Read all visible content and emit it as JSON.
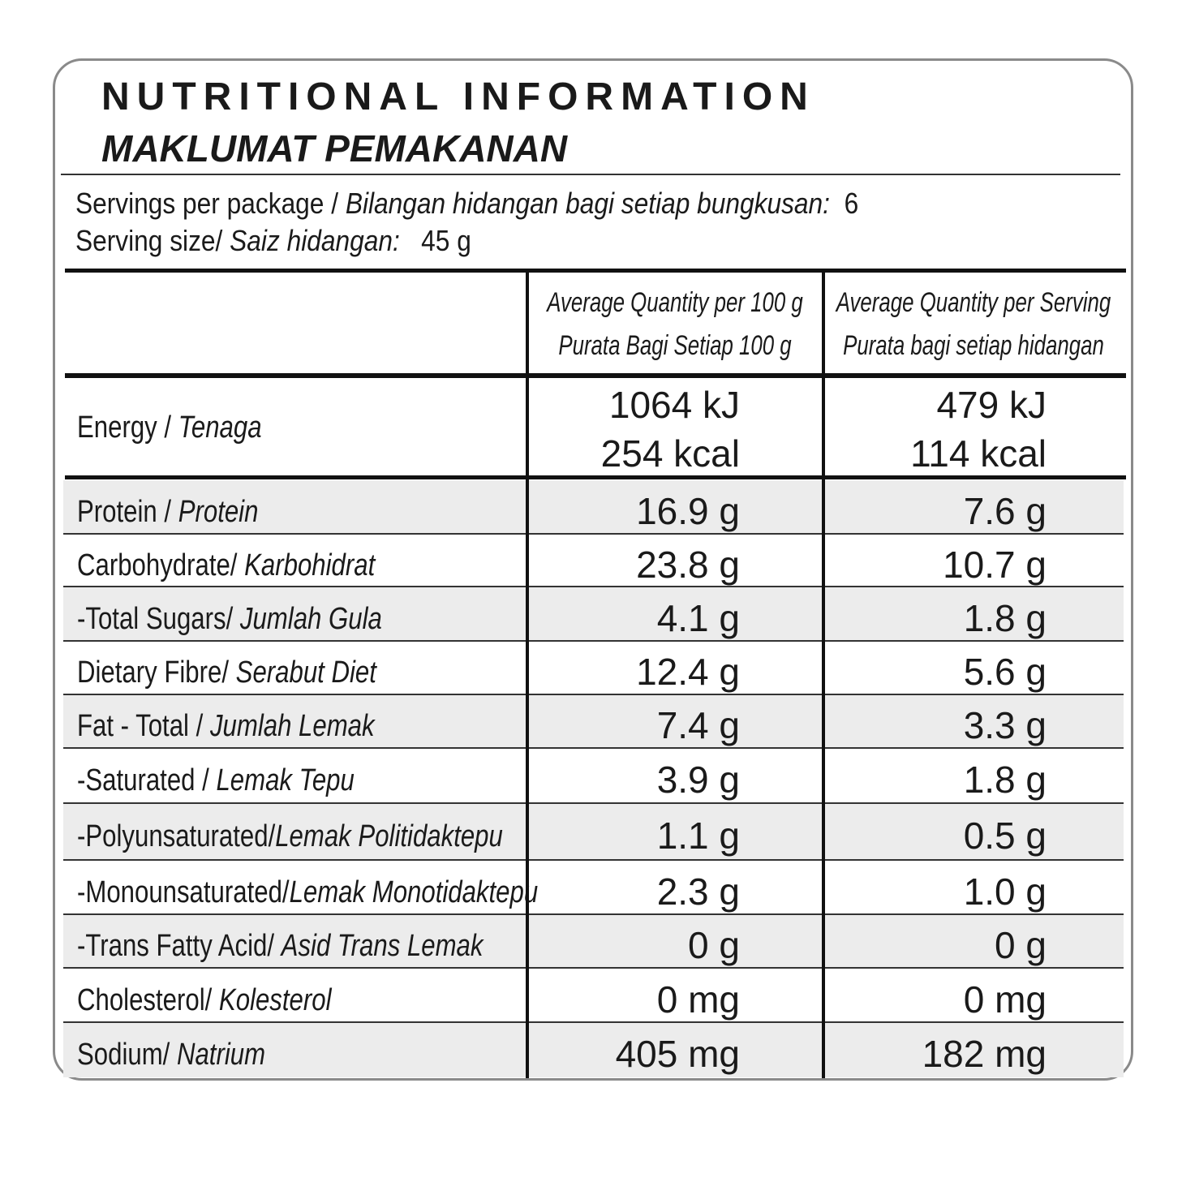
{
  "header": {
    "title": "NUTRITIONAL INFORMATION",
    "subtitle": "MAKLUMAT PEMAKANAN"
  },
  "servings": {
    "per_package": {
      "label": "Servings per package / ",
      "label_italic": "Bilangan hidangan bagi setiap bungkusan:",
      "value": "6"
    },
    "size": {
      "label": "Serving size/ ",
      "label_italic": "Saiz hidangan:",
      "value": "45 g"
    }
  },
  "table": {
    "columns": [
      [
        "Average Quantity per 100 g",
        "Purata Bagi Setiap 100 g"
      ],
      [
        "Average Quantity per Serving",
        "Purata bagi setiap hidangan"
      ]
    ],
    "energy": {
      "label": "Energy / ",
      "label_italic": "Tenaga",
      "per_100g": [
        "1064 kJ",
        "254 kcal"
      ],
      "per_serving": [
        "479 kJ",
        "114 kcal"
      ]
    },
    "rows": [
      {
        "label": "Protein / ",
        "label_italic": "Protein",
        "per_100g": "16.9 g",
        "per_serving": "7.6 g"
      },
      {
        "label": "Carbohydrate/ ",
        "label_italic": "Karbohidrat",
        "per_100g": "23.8 g",
        "per_serving": "10.7 g"
      },
      {
        "label": "-Total Sugars/ ",
        "label_italic": "Jumlah Gula",
        "per_100g": "4.1 g",
        "per_serving": "1.8 g"
      },
      {
        "label": "Dietary Fibre/ ",
        "label_italic": "Serabut Diet",
        "per_100g": "12.4 g",
        "per_serving": "5.6 g"
      },
      {
        "label": "Fat - Total / ",
        "label_italic": "Jumlah Lemak",
        "per_100g": "7.4 g",
        "per_serving": "3.3 g"
      },
      {
        "label": "-Saturated / ",
        "label_italic": "Lemak Tepu",
        "per_100g": "3.9 g",
        "per_serving": "1.8 g"
      },
      {
        "label": "-Polyunsaturated/",
        "label_italic": "Lemak Politidaktepu",
        "per_100g": "1.1 g",
        "per_serving": "0.5 g"
      },
      {
        "label": "-Monounsaturated/",
        "label_italic": "Lemak Monotidaktepu",
        "per_100g": "2.3 g",
        "per_serving": "1.0 g"
      },
      {
        "label": "-Trans Fatty Acid/ ",
        "label_italic": "Asid Trans Lemak",
        "per_100g": "0 g",
        "per_serving": "0 g"
      },
      {
        "label": "Cholesterol/ ",
        "label_italic": "Kolesterol",
        "per_100g": "0 mg",
        "per_serving": "0 mg"
      },
      {
        "label": "Sodium/ ",
        "label_italic": "Natrium",
        "per_100g": "405 mg",
        "per_serving": "182 mg"
      }
    ]
  }
}
